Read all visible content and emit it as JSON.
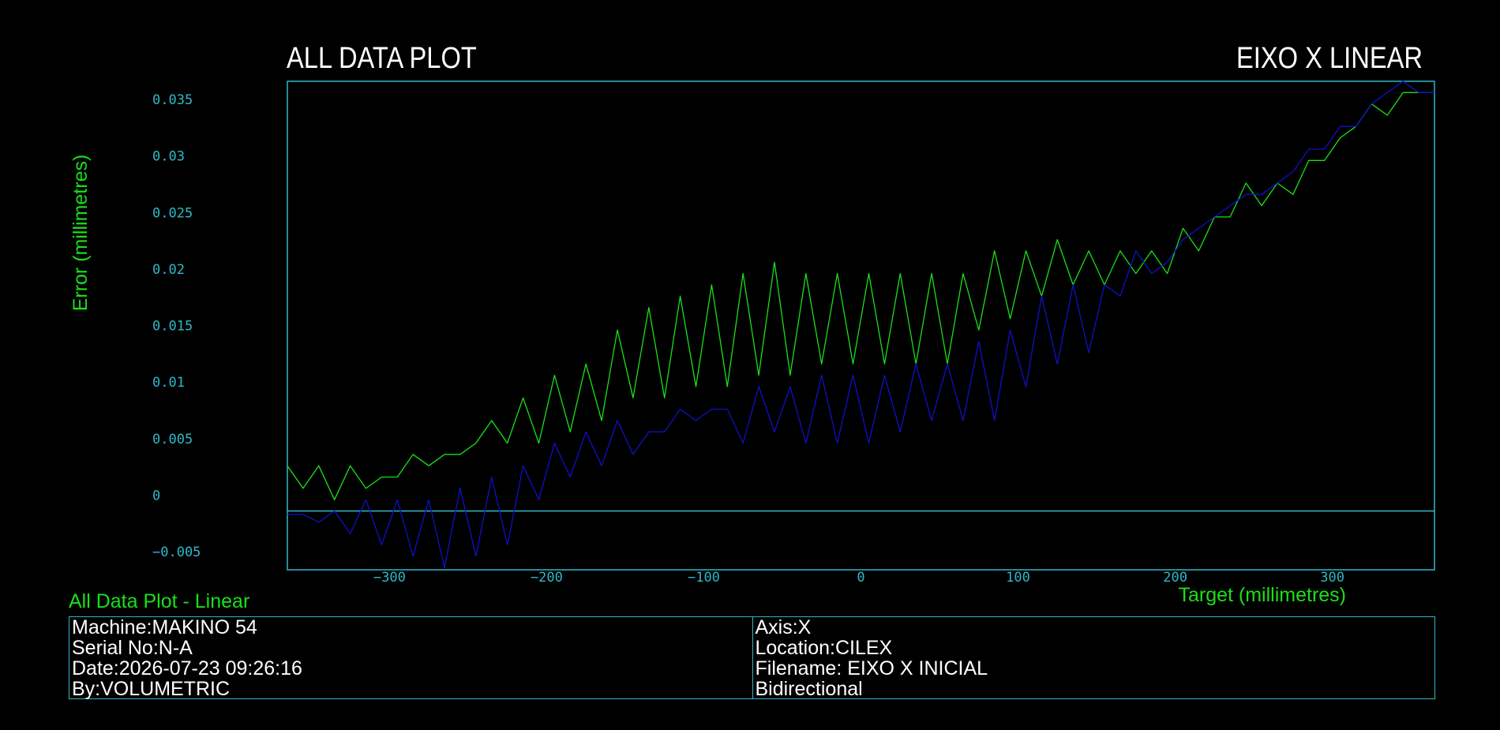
{
  "header": {
    "left_title": "ALL DATA PLOT",
    "right_title": "EIXO X LINEAR"
  },
  "caption": "All Data Plot - Linear",
  "info": {
    "left": [
      "Machine:MAKINO 54",
      "Serial No:N-A",
      "Date:2026-07-23 09:26:16",
      "By:VOLUMETRIC"
    ],
    "right": [
      "Axis:X",
      "Location:CILEX",
      "Filename: EIXO X INICIAL",
      "Bidirectional"
    ]
  },
  "colors": {
    "background": "#000000",
    "frame": "#2fb8c8",
    "series_forward": "#19e019",
    "series_reverse": "#1010c8",
    "label_green": "#19e019"
  },
  "chart_data": {
    "type": "line",
    "xlabel": "Target (millimetres)",
    "ylabel": "Error (millimetres)",
    "xlim": [
      -365,
      365
    ],
    "ylim": [
      -0.0052,
      0.038
    ],
    "x_ticks": [
      -300,
      -200,
      -100,
      0,
      100,
      200,
      300
    ],
    "x_tick_labels": [
      "−300",
      "−200",
      "−100",
      "0",
      "100",
      "200",
      "300"
    ],
    "y_ticks": [
      0.035,
      0.03,
      0.025,
      0.02,
      0.015,
      0.01,
      0.005,
      0,
      -0.005
    ],
    "y_tick_labels": [
      "0.035",
      "0.03",
      "0.025",
      "0.02",
      "0.015",
      "0.01",
      "0.005",
      "0",
      "−0.005"
    ],
    "zero_line": 0,
    "grid": false,
    "series": [
      {
        "color": "#19e019",
        "x": [
          -365,
          -355,
          -345,
          -335,
          -325,
          -315,
          -305,
          -295,
          -285,
          -275,
          -265,
          -255,
          -245,
          -235,
          -225,
          -215,
          -205,
          -195,
          -185,
          -175,
          -165,
          -155,
          -145,
          -135,
          -125,
          -115,
          -105,
          -95,
          -85,
          -75,
          -65,
          -55,
          -45,
          -35,
          -25,
          -15,
          -5,
          5,
          15,
          25,
          35,
          45,
          55,
          65,
          75,
          85,
          95,
          105,
          115,
          125,
          135,
          145,
          155,
          165,
          175,
          185,
          195,
          205,
          215,
          225,
          235,
          245,
          255,
          265,
          275,
          285,
          295,
          305,
          315,
          325,
          335,
          345,
          355,
          365
        ],
        "y": [
          0.004,
          0.002,
          0.004,
          0.001,
          0.004,
          0.002,
          0.003,
          0.003,
          0.005,
          0.004,
          0.005,
          0.005,
          0.006,
          0.008,
          0.006,
          0.01,
          0.006,
          0.012,
          0.007,
          0.013,
          0.008,
          0.016,
          0.01,
          0.018,
          0.01,
          0.019,
          0.011,
          0.02,
          0.011,
          0.021,
          0.012,
          0.022,
          0.012,
          0.021,
          0.013,
          0.021,
          0.013,
          0.021,
          0.013,
          0.021,
          0.013,
          0.021,
          0.013,
          0.021,
          0.016,
          0.023,
          0.017,
          0.023,
          0.019,
          0.024,
          0.02,
          0.023,
          0.02,
          0.023,
          0.021,
          0.023,
          0.021,
          0.025,
          0.023,
          0.026,
          0.026,
          0.029,
          0.027,
          0.029,
          0.028,
          0.031,
          0.031,
          0.033,
          0.034,
          0.036,
          0.035,
          0.037,
          0.037,
          0.037
        ]
      },
      {
        "color": "#1010c8",
        "x": [
          -365,
          -355,
          -345,
          -335,
          -325,
          -315,
          -305,
          -295,
          -285,
          -275,
          -265,
          -255,
          -245,
          -235,
          -225,
          -215,
          -205,
          -195,
          -185,
          -175,
          -165,
          -155,
          -145,
          -135,
          -125,
          -115,
          -105,
          -95,
          -85,
          -75,
          -65,
          -55,
          -45,
          -35,
          -25,
          -15,
          -5,
          5,
          15,
          25,
          35,
          45,
          55,
          65,
          75,
          85,
          95,
          105,
          115,
          125,
          135,
          145,
          155,
          165,
          175,
          185,
          195,
          205,
          215,
          225,
          235,
          245,
          255,
          265,
          275,
          285,
          295,
          305,
          315,
          325,
          335,
          345,
          355,
          365
        ],
        "y": [
          -0.0003,
          -0.0003,
          -0.001,
          0,
          -0.002,
          0.001,
          -0.003,
          0.001,
          -0.004,
          0.001,
          -0.005,
          0.002,
          -0.004,
          0.003,
          -0.003,
          0.004,
          0.001,
          0.006,
          0.003,
          0.007,
          0.004,
          0.008,
          0.005,
          0.007,
          0.007,
          0.009,
          0.008,
          0.009,
          0.009,
          0.006,
          0.011,
          0.007,
          0.011,
          0.006,
          0.012,
          0.006,
          0.012,
          0.006,
          0.012,
          0.007,
          0.013,
          0.008,
          0.013,
          0.008,
          0.015,
          0.008,
          0.016,
          0.011,
          0.019,
          0.013,
          0.02,
          0.014,
          0.02,
          0.019,
          0.023,
          0.021,
          0.022,
          0.024,
          0.025,
          0.026,
          0.027,
          0.028,
          0.028,
          0.029,
          0.03,
          0.032,
          0.032,
          0.034,
          0.034,
          0.036,
          0.037,
          0.038,
          0.037,
          0.037
        ]
      }
    ]
  }
}
